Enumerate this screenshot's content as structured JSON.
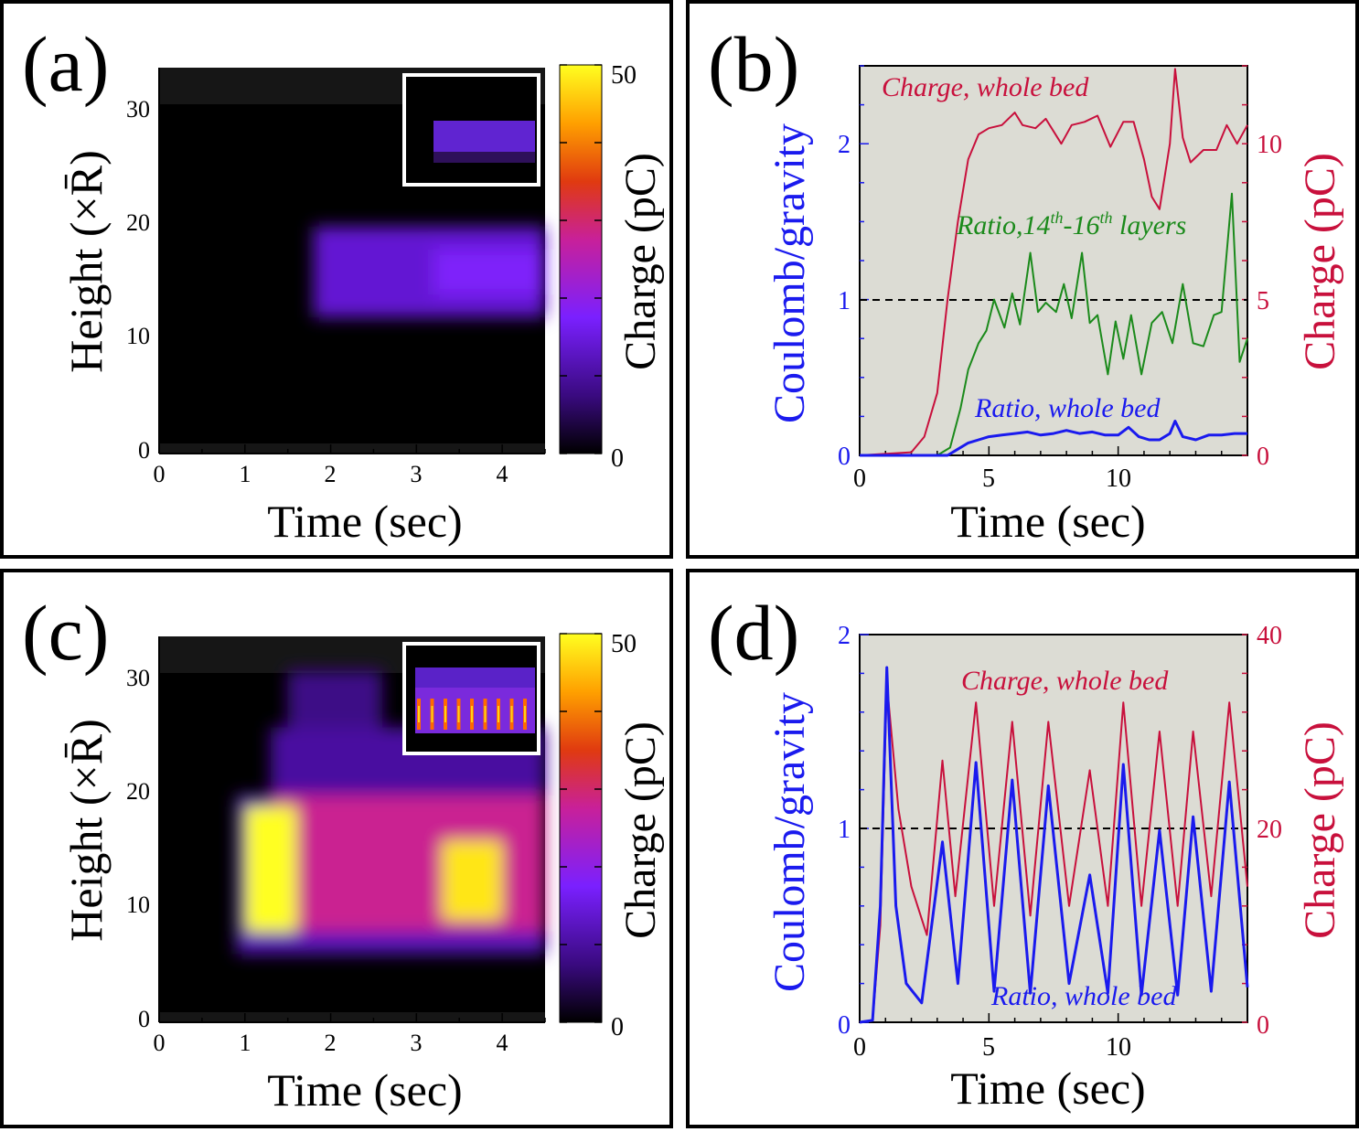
{
  "chart_data": [
    {
      "panel": "(a)",
      "type": "heatmap",
      "xlabel": "Time (sec)",
      "ylabel": "Height (×R̄)",
      "xlim": [
        0,
        4.5
      ],
      "ylim": [
        0,
        34
      ],
      "xticks": [
        "0",
        "1",
        "2",
        "3",
        "4"
      ],
      "yticks": [
        "0",
        "10",
        "20",
        "30"
      ],
      "colorbar": {
        "label": "Charge (pC)",
        "min": 0,
        "max": 50,
        "ticks": [
          "0",
          "50"
        ]
      },
      "regions": [
        {
          "t0": 1.8,
          "t1": 4.5,
          "h0": 12,
          "h1": 20,
          "charge": 14
        },
        {
          "t0": 3.2,
          "t1": 4.5,
          "h0": 14,
          "h1": 18,
          "charge": 18
        }
      ]
    },
    {
      "panel": "(b)",
      "type": "line",
      "xlabel": "Time (sec)",
      "ylabel_left": "Coulomb/gravity",
      "ylabel_right": "Charge (pC)",
      "xlim": [
        0,
        15
      ],
      "ylim_left": [
        0,
        2.5
      ],
      "ylim_right": [
        0,
        12.5
      ],
      "xticks": [
        "0",
        "5",
        "10"
      ],
      "yticks_left": [
        "0",
        "1",
        "2"
      ],
      "yticks_right": [
        "0",
        "5",
        "10"
      ],
      "reference_line": 1,
      "series": [
        {
          "name": "Charge, whole bed",
          "axis": "right",
          "color": "#c8103c",
          "x": [
            0,
            2,
            2.5,
            3,
            3.4,
            3.8,
            4.2,
            4.6,
            5,
            5.5,
            6,
            6.3,
            6.8,
            7.2,
            7.8,
            8.2,
            8.7,
            9.2,
            9.7,
            10.2,
            10.6,
            11,
            11.3,
            11.6,
            12,
            12.2,
            12.5,
            12.8,
            13.3,
            13.8,
            14.2,
            14.6,
            15
          ],
          "y": [
            0,
            0.1,
            0.6,
            2,
            5,
            7.5,
            9.5,
            10.3,
            10.5,
            10.6,
            11,
            10.6,
            10.5,
            10.8,
            10,
            10.6,
            10.7,
            10.9,
            9.9,
            10.7,
            10.7,
            9.5,
            8.3,
            7.9,
            10,
            12.4,
            10.2,
            9.4,
            9.8,
            9.8,
            10.6,
            10,
            10.6
          ]
        },
        {
          "name": "Ratio, 14th-16th layers",
          "axis": "left",
          "color": "#1b8a1b",
          "x": [
            0,
            3,
            3.5,
            3.9,
            4.2,
            4.6,
            4.9,
            5.2,
            5.6,
            5.9,
            6.2,
            6.6,
            6.9,
            7.2,
            7.6,
            7.9,
            8.2,
            8.6,
            8.9,
            9.2,
            9.6,
            9.9,
            10.2,
            10.5,
            10.9,
            11.3,
            11.7,
            12.1,
            12.5,
            12.9,
            13.3,
            13.7,
            14,
            14.4,
            14.7,
            15
          ],
          "y": [
            0,
            0,
            0.05,
            0.3,
            0.55,
            0.72,
            0.8,
            1,
            0.82,
            1.04,
            0.84,
            1.3,
            0.92,
            0.98,
            0.92,
            1.1,
            0.88,
            1.3,
            0.85,
            0.9,
            0.52,
            0.86,
            0.62,
            0.9,
            0.52,
            0.85,
            0.92,
            0.72,
            1.1,
            0.72,
            0.7,
            0.9,
            0.92,
            1.68,
            0.6,
            0.75
          ]
        },
        {
          "name": "Ratio, whole bed",
          "axis": "left",
          "color": "#1a1aee",
          "x": [
            0,
            3.4,
            3.8,
            4.2,
            4.6,
            5,
            5.5,
            6,
            6.5,
            7,
            7.5,
            8,
            8.5,
            9,
            9.5,
            10,
            10.4,
            10.8,
            11.2,
            11.6,
            12,
            12.2,
            12.5,
            13,
            13.5,
            14,
            14.5,
            15
          ],
          "y": [
            0,
            0,
            0.04,
            0.08,
            0.1,
            0.12,
            0.13,
            0.14,
            0.15,
            0.13,
            0.14,
            0.16,
            0.14,
            0.15,
            0.13,
            0.13,
            0.18,
            0.12,
            0.1,
            0.1,
            0.14,
            0.22,
            0.12,
            0.1,
            0.13,
            0.13,
            0.14,
            0.14
          ]
        }
      ],
      "annotations": [
        "Charge, whole bed",
        "Ratio,14",
        "th",
        "-16",
        "th",
        " layers",
        "Ratio, whole bed"
      ]
    },
    {
      "panel": "(c)",
      "type": "heatmap",
      "xlabel": "Time (sec)",
      "ylabel": "Height (×R̄)",
      "xlim": [
        0,
        4.5
      ],
      "ylim": [
        0,
        34
      ],
      "xticks": [
        "0",
        "1",
        "2",
        "3",
        "4"
      ],
      "yticks": [
        "0",
        "10",
        "20",
        "30"
      ],
      "colorbar": {
        "label": "Charge (pC)",
        "min": 0,
        "max": 50,
        "ticks": [
          "0",
          "50"
        ]
      },
      "regions": [
        {
          "t0": 0.9,
          "t1": 4.5,
          "h0": 6,
          "h1": 20,
          "charge": 12
        },
        {
          "t0": 1.3,
          "t1": 4.5,
          "h0": 20,
          "h1": 26,
          "charge": 10
        },
        {
          "t0": 1.5,
          "t1": 2.6,
          "h0": 26,
          "h1": 31,
          "charge": 8
        },
        {
          "t0": 1.3,
          "t1": 4.5,
          "h0": 8,
          "h1": 20,
          "charge": 28
        },
        {
          "t0": 1.0,
          "t1": 1.6,
          "h0": 8,
          "h1": 19,
          "charge": 50
        },
        {
          "t0": 3.3,
          "t1": 4.0,
          "h0": 9,
          "h1": 16,
          "charge": 48
        }
      ]
    },
    {
      "panel": "(d)",
      "type": "line",
      "xlabel": "Time (sec)",
      "ylabel_left": "Coulomb/gravity",
      "ylabel_right": "Charge (pC)",
      "xlim": [
        0,
        15
      ],
      "ylim_left": [
        0,
        2
      ],
      "ylim_right": [
        0,
        40
      ],
      "xticks": [
        "0",
        "5",
        "10"
      ],
      "yticks_left": [
        "0",
        "1",
        "2"
      ],
      "yticks_right": [
        "0",
        "20",
        "40"
      ],
      "reference_line": 1,
      "series": [
        {
          "name": "Charge, whole bed",
          "axis": "right",
          "color": "#c8103c",
          "x": [
            0,
            0.5,
            0.8,
            1.05,
            1.5,
            2,
            2.6,
            3.2,
            3.7,
            4.5,
            5.2,
            5.9,
            6.6,
            7.3,
            8.1,
            8.9,
            9.6,
            10.2,
            10.9,
            11.6,
            12.3,
            12.9,
            13.6,
            14.3,
            15
          ],
          "y": [
            0,
            0.2,
            10,
            35,
            22,
            14,
            9,
            27,
            13,
            33,
            12,
            31,
            11,
            31,
            12,
            26,
            12,
            33,
            12,
            30,
            12,
            30,
            13,
            33,
            14
          ]
        },
        {
          "name": "Ratio, whole bed",
          "axis": "left",
          "color": "#1a1aee",
          "x": [
            0,
            0.5,
            0.8,
            1.05,
            1.4,
            1.8,
            2.4,
            3.2,
            3.8,
            4.5,
            5.2,
            5.9,
            6.6,
            7.3,
            8.1,
            8.9,
            9.6,
            10.2,
            10.9,
            11.6,
            12.3,
            12.9,
            13.6,
            14.3,
            15
          ],
          "y": [
            0,
            0.01,
            0.6,
            1.83,
            0.6,
            0.2,
            0.1,
            0.93,
            0.2,
            1.34,
            0.16,
            1.25,
            0.15,
            1.22,
            0.2,
            0.76,
            0.15,
            1.33,
            0.14,
            0.99,
            0.14,
            1.06,
            0.16,
            1.24,
            0.18
          ]
        }
      ],
      "annotations": [
        "Charge, whole bed",
        "Ratio, whole bed"
      ]
    }
  ]
}
